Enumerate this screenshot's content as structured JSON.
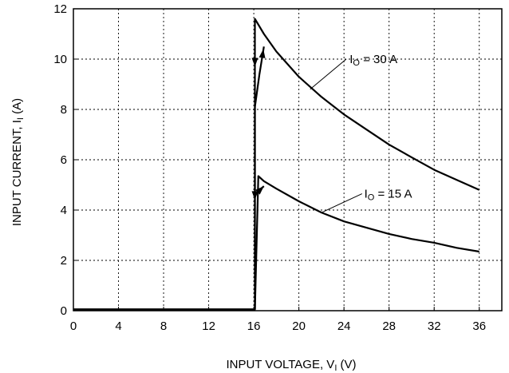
{
  "colors": {
    "line": "#000000",
    "grid": "#000000",
    "background": "#ffffff"
  },
  "chart_data": {
    "type": "line",
    "title": "",
    "xlabel": "INPUT VOLTAGE, VI (V)",
    "xlabel_parts": {
      "prefix": "INPUT VOLTAGE, V",
      "sub": "I",
      "suffix": " (V)"
    },
    "ylabel": "INPUT CURRENT, II (A)",
    "ylabel_parts": {
      "prefix": "INPUT CURRENT, I",
      "sub": "I",
      "suffix": " (A)"
    },
    "xlim": [
      0,
      38
    ],
    "ylim": [
      0,
      12
    ],
    "x_ticks": [
      0,
      4,
      8,
      12,
      16,
      20,
      24,
      28,
      32,
      36
    ],
    "x_tick_labels": [
      "0",
      "4",
      "8",
      "12",
      "16",
      "20",
      "24",
      "28",
      "32",
      "36"
    ],
    "y_ticks": [
      0,
      2,
      4,
      6,
      8,
      10,
      12
    ],
    "y_tick_labels": [
      "0",
      "2",
      "4",
      "6",
      "8",
      "10",
      "12"
    ],
    "grid": true,
    "series": [
      {
        "annotation": {
          "prefix": "I",
          "sub": "O",
          "suffix": " = 30 A"
        },
        "down_path": {
          "x": [
            36,
            34,
            32,
            30,
            28,
            26,
            24,
            22,
            20,
            18,
            16.9,
            16.1,
            16.1,
            0
          ],
          "y": [
            4.8,
            5.2,
            5.6,
            6.1,
            6.6,
            7.2,
            7.8,
            8.5,
            9.3,
            10.3,
            11.0,
            11.6,
            0.05,
            0.05
          ]
        },
        "up_path": {
          "x": [
            0,
            16.1,
            16.1,
            16.5,
            16.9
          ],
          "y": [
            0.05,
            0.05,
            8.1,
            9.4,
            10.5
          ]
        }
      },
      {
        "annotation": {
          "prefix": "I",
          "sub": "O",
          "suffix": " = 15 A"
        },
        "down_path": {
          "x": [
            36,
            34,
            32,
            30,
            28,
            26,
            24,
            22,
            20,
            18,
            16.9,
            16.4,
            16.1
          ],
          "y": [
            2.35,
            2.5,
            2.7,
            2.85,
            3.05,
            3.3,
            3.55,
            3.9,
            4.35,
            4.85,
            5.15,
            5.35,
            0.05
          ]
        },
        "up_path": {
          "x": [
            16.1,
            16.5,
            16.9
          ],
          "y": [
            4.6,
            4.8,
            4.95
          ]
        }
      }
    ]
  }
}
